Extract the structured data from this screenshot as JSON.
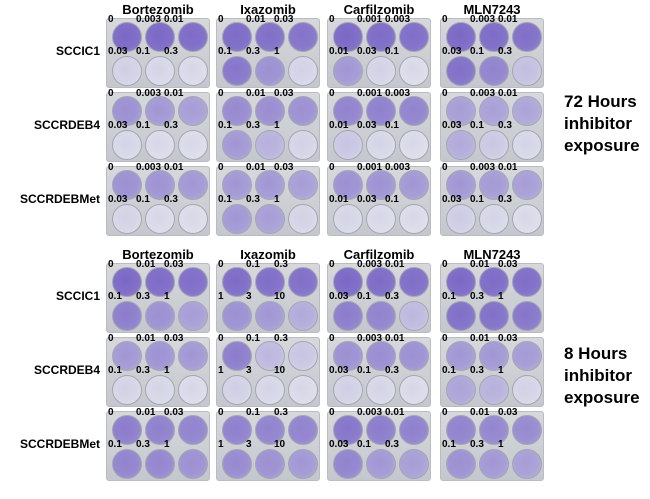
{
  "drugs": [
    "Bortezomib",
    "Ixazomib",
    "Carfilzomib",
    "MLN7243"
  ],
  "cell_lines": [
    "SCCIC1",
    "SCCRDEB4",
    "SCCRDEBMet"
  ],
  "panels": [
    {
      "exposure_label": [
        "72 Hours",
        "inhibitor",
        "exposure"
      ],
      "concentrations": [
        [
          "0",
          "0.003",
          "0.01",
          "0.03",
          "0.1",
          "0.3"
        ],
        [
          "0",
          "0.01",
          "0.03",
          "0.1",
          "0.3",
          "1"
        ],
        [
          "0",
          "0.001",
          "0.003",
          "0.01",
          "0.03",
          "0.1"
        ],
        [
          "0",
          "0.003",
          "0.01",
          "0.03",
          "0.1",
          "0.3"
        ]
      ],
      "stain": [
        [
          [
            0.9,
            0.9,
            0.88,
            0.12,
            0.08,
            0.06
          ],
          [
            0.88,
            0.85,
            0.82,
            0.8,
            0.6,
            0.1
          ],
          [
            0.9,
            0.88,
            0.86,
            0.55,
            0.1,
            0.05
          ],
          [
            0.9,
            0.88,
            0.85,
            0.84,
            0.7,
            0.25
          ]
        ],
        [
          [
            0.6,
            0.55,
            0.5,
            0.08,
            0.06,
            0.05
          ],
          [
            0.65,
            0.62,
            0.6,
            0.55,
            0.35,
            0.1
          ],
          [
            0.7,
            0.72,
            0.7,
            0.2,
            0.08,
            0.05
          ],
          [
            0.5,
            0.48,
            0.45,
            0.4,
            0.18,
            0.08
          ]
        ],
        [
          [
            0.6,
            0.58,
            0.55,
            0.1,
            0.06,
            0.05
          ],
          [
            0.55,
            0.55,
            0.5,
            0.55,
            0.5,
            0.1
          ],
          [
            0.6,
            0.58,
            0.55,
            0.08,
            0.06,
            0.05
          ],
          [
            0.55,
            0.52,
            0.5,
            0.15,
            0.08,
            0.05
          ]
        ]
      ]
    },
    {
      "exposure_label": [
        "8 Hours",
        "inhibitor",
        "exposure"
      ],
      "concentrations": [
        [
          "0",
          "0.01",
          "0.03",
          "0.1",
          "0.3",
          "1"
        ],
        [
          "0",
          "0.1",
          "0.3",
          "1",
          "3",
          "10"
        ],
        [
          "0",
          "0.003",
          "0.01",
          "0.03",
          "0.1",
          "0.3"
        ],
        [
          "0",
          "0.01",
          "0.03",
          "0.1",
          "0.3",
          "1"
        ]
      ],
      "stain": [
        [
          [
            0.9,
            0.88,
            0.86,
            0.75,
            0.6,
            0.5
          ],
          [
            0.88,
            0.86,
            0.85,
            0.6,
            0.55,
            0.4
          ],
          [
            0.9,
            0.88,
            0.86,
            0.75,
            0.7,
            0.3
          ],
          [
            0.9,
            0.88,
            0.86,
            0.85,
            0.84,
            0.8
          ]
        ],
        [
          [
            0.55,
            0.58,
            0.55,
            0.1,
            0.08,
            0.06
          ],
          [
            0.75,
            0.3,
            0.2,
            0.12,
            0.08,
            0.06
          ],
          [
            0.6,
            0.62,
            0.6,
            0.12,
            0.08,
            0.06
          ],
          [
            0.55,
            0.55,
            0.52,
            0.45,
            0.35,
            0.1
          ]
        ],
        [
          [
            0.75,
            0.72,
            0.7,
            0.7,
            0.68,
            0.6
          ],
          [
            0.72,
            0.7,
            0.7,
            0.65,
            0.6,
            0.55
          ],
          [
            0.8,
            0.75,
            0.72,
            0.7,
            0.55,
            0.5
          ],
          [
            0.7,
            0.68,
            0.65,
            0.6,
            0.55,
            0.5
          ]
        ]
      ]
    }
  ]
}
